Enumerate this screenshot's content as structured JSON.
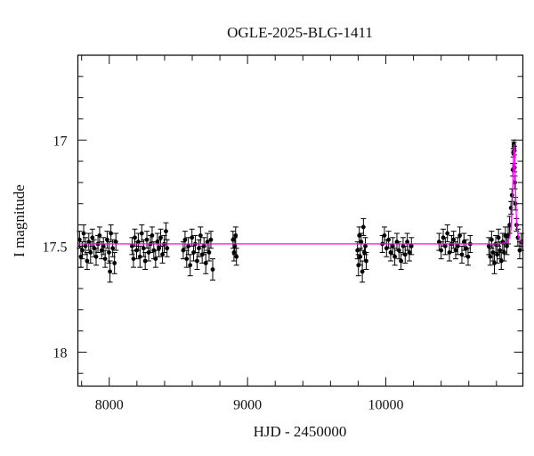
{
  "chart_data": {
    "type": "scatter",
    "title": "OGLE-2025-BLG-1411",
    "xlabel": "HJD - 2450000",
    "ylabel": "I magnitude",
    "xlim": [
      7773,
      10991
    ],
    "ylim": [
      16.6,
      18.16
    ],
    "y_inverted": true,
    "x_ticks": [
      8000,
      9000,
      10000
    ],
    "x_tick_labels": [
      "8000",
      "9000",
      "10000"
    ],
    "y_ticks": [
      17,
      17.5,
      18
    ],
    "y_tick_labels": [
      "17",
      "17.5",
      "18"
    ],
    "grid": false,
    "colors": {
      "points": "#000000",
      "model": "#ff00ff"
    },
    "series": [
      {
        "kind": "points_with_errorbars",
        "points": [
          [
            7785,
            17.47,
            0.04
          ],
          [
            7795,
            17.55,
            0.05
          ],
          [
            7805,
            17.52,
            0.04
          ],
          [
            7815,
            17.44,
            0.04
          ],
          [
            7828,
            17.5,
            0.04
          ],
          [
            7840,
            17.57,
            0.04
          ],
          [
            7852,
            17.48,
            0.04
          ],
          [
            7865,
            17.53,
            0.05
          ],
          [
            7878,
            17.46,
            0.04
          ],
          [
            7890,
            17.51,
            0.04
          ],
          [
            7905,
            17.55,
            0.04
          ],
          [
            7918,
            17.49,
            0.04
          ],
          [
            7930,
            17.45,
            0.04
          ],
          [
            7945,
            17.52,
            0.04
          ],
          [
            7958,
            17.5,
            0.04
          ],
          [
            7970,
            17.56,
            0.04
          ],
          [
            7985,
            17.47,
            0.04
          ],
          [
            7998,
            17.53,
            0.05
          ],
          [
            8005,
            17.62,
            0.05
          ],
          [
            8012,
            17.44,
            0.04
          ],
          [
            8025,
            17.51,
            0.04
          ],
          [
            8038,
            17.58,
            0.05
          ],
          [
            8048,
            17.48,
            0.04
          ],
          [
            8165,
            17.5,
            0.04
          ],
          [
            8175,
            17.56,
            0.04
          ],
          [
            8185,
            17.46,
            0.04
          ],
          [
            8198,
            17.52,
            0.04
          ],
          [
            8210,
            17.48,
            0.04
          ],
          [
            8222,
            17.55,
            0.05
          ],
          [
            8235,
            17.44,
            0.04
          ],
          [
            8248,
            17.51,
            0.04
          ],
          [
            8260,
            17.57,
            0.04
          ],
          [
            8272,
            17.47,
            0.04
          ],
          [
            8285,
            17.53,
            0.04
          ],
          [
            8298,
            17.49,
            0.04
          ],
          [
            8310,
            17.45,
            0.04
          ],
          [
            8322,
            17.52,
            0.04
          ],
          [
            8335,
            17.56,
            0.04
          ],
          [
            8348,
            17.48,
            0.04
          ],
          [
            8360,
            17.51,
            0.04
          ],
          [
            8372,
            17.46,
            0.04
          ],
          [
            8385,
            17.54,
            0.04
          ],
          [
            8398,
            17.49,
            0.04
          ],
          [
            8410,
            17.43,
            0.04
          ],
          [
            8418,
            17.51,
            0.04
          ],
          [
            8535,
            17.52,
            0.04
          ],
          [
            8548,
            17.47,
            0.04
          ],
          [
            8560,
            17.56,
            0.04
          ],
          [
            8572,
            17.5,
            0.04
          ],
          [
            8585,
            17.59,
            0.05
          ],
          [
            8598,
            17.46,
            0.04
          ],
          [
            8610,
            17.53,
            0.04
          ],
          [
            8622,
            17.49,
            0.04
          ],
          [
            8635,
            17.57,
            0.04
          ],
          [
            8648,
            17.51,
            0.04
          ],
          [
            8660,
            17.45,
            0.04
          ],
          [
            8672,
            17.54,
            0.04
          ],
          [
            8685,
            17.5,
            0.04
          ],
          [
            8698,
            17.58,
            0.05
          ],
          [
            8710,
            17.48,
            0.04
          ],
          [
            8722,
            17.53,
            0.04
          ],
          [
            8735,
            17.47,
            0.04
          ],
          [
            8748,
            17.61,
            0.05
          ],
          [
            8895,
            17.47,
            0.04
          ],
          [
            8902,
            17.53,
            0.04
          ],
          [
            8908,
            17.5,
            0.04
          ],
          [
            8914,
            17.45,
            0.04
          ],
          [
            8920,
            17.55,
            0.04
          ],
          [
            9795,
            17.52,
            0.04
          ],
          [
            9802,
            17.59,
            0.05
          ],
          [
            9808,
            17.45,
            0.04
          ],
          [
            9815,
            17.55,
            0.04
          ],
          [
            9822,
            17.48,
            0.04
          ],
          [
            9830,
            17.62,
            0.05
          ],
          [
            9838,
            17.41,
            0.04
          ],
          [
            9845,
            17.53,
            0.04
          ],
          [
            9852,
            17.5,
            0.04
          ],
          [
            9858,
            17.57,
            0.04
          ],
          [
            9975,
            17.49,
            0.04
          ],
          [
            9990,
            17.45,
            0.04
          ],
          [
            10005,
            17.51,
            0.04
          ],
          [
            10020,
            17.47,
            0.04
          ],
          [
            10035,
            17.53,
            0.04
          ],
          [
            10050,
            17.5,
            0.04
          ],
          [
            10065,
            17.55,
            0.04
          ],
          [
            10080,
            17.48,
            0.04
          ],
          [
            10095,
            17.52,
            0.04
          ],
          [
            10110,
            17.57,
            0.04
          ],
          [
            10125,
            17.5,
            0.04
          ],
          [
            10140,
            17.54,
            0.04
          ],
          [
            10155,
            17.48,
            0.04
          ],
          [
            10170,
            17.53,
            0.04
          ],
          [
            10185,
            17.5,
            0.04
          ],
          [
            10385,
            17.48,
            0.04
          ],
          [
            10400,
            17.52,
            0.04
          ],
          [
            10415,
            17.46,
            0.04
          ],
          [
            10430,
            17.5,
            0.04
          ],
          [
            10445,
            17.44,
            0.04
          ],
          [
            10460,
            17.53,
            0.04
          ],
          [
            10475,
            17.49,
            0.04
          ],
          [
            10490,
            17.47,
            0.04
          ],
          [
            10505,
            17.52,
            0.04
          ],
          [
            10520,
            17.5,
            0.04
          ],
          [
            10535,
            17.45,
            0.04
          ],
          [
            10550,
            17.54,
            0.04
          ],
          [
            10565,
            17.48,
            0.04
          ],
          [
            10580,
            17.51,
            0.04
          ],
          [
            10595,
            17.55,
            0.04
          ],
          [
            10610,
            17.49,
            0.04
          ],
          [
            10745,
            17.5,
            0.04
          ],
          [
            10755,
            17.55,
            0.04
          ],
          [
            10765,
            17.47,
            0.04
          ],
          [
            10775,
            17.53,
            0.04
          ],
          [
            10785,
            17.58,
            0.05
          ],
          [
            10795,
            17.49,
            0.04
          ],
          [
            10805,
            17.54,
            0.04
          ],
          [
            10815,
            17.46,
            0.04
          ],
          [
            10825,
            17.52,
            0.04
          ],
          [
            10835,
            17.57,
            0.04
          ],
          [
            10845,
            17.48,
            0.04
          ],
          [
            10855,
            17.53,
            0.04
          ],
          [
            10865,
            17.45,
            0.04
          ],
          [
            10875,
            17.5,
            0.04
          ],
          [
            10885,
            17.45,
            0.04
          ],
          [
            10895,
            17.4,
            0.04
          ],
          [
            10905,
            17.32,
            0.03
          ],
          [
            10912,
            17.26,
            0.03
          ],
          [
            10918,
            17.14,
            0.03
          ],
          [
            10922,
            17.06,
            0.02
          ],
          [
            10925,
            17.02,
            0.02
          ],
          [
            10927,
            17.03,
            0.02
          ],
          [
            10929,
            17.05,
            0.02
          ],
          [
            10931,
            17.13,
            0.02
          ],
          [
            10933,
            17.2,
            0.03
          ],
          [
            10937,
            17.3,
            0.03
          ],
          [
            10945,
            17.4,
            0.03
          ],
          [
            10955,
            17.46,
            0.04
          ],
          [
            10968,
            17.52,
            0.04
          ],
          [
            10980,
            17.48,
            0.04
          ]
        ]
      },
      {
        "kind": "model_curve",
        "points": [
          [
            7773,
            17.49
          ],
          [
            10800,
            17.49
          ],
          [
            10870,
            17.485
          ],
          [
            10895,
            17.46
          ],
          [
            10905,
            17.42
          ],
          [
            10913,
            17.33
          ],
          [
            10918,
            17.22
          ],
          [
            10922,
            17.11
          ],
          [
            10925,
            17.05
          ],
          [
            10928,
            17.02
          ],
          [
            10931,
            17.05
          ],
          [
            10934,
            17.12
          ],
          [
            10938,
            17.24
          ],
          [
            10944,
            17.36
          ],
          [
            10952,
            17.43
          ],
          [
            10965,
            17.47
          ],
          [
            10991,
            17.485
          ]
        ]
      }
    ]
  }
}
